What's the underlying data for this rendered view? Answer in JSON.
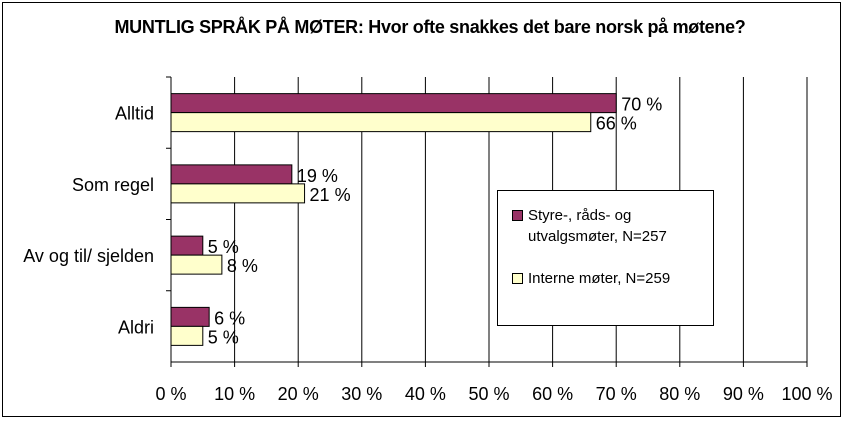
{
  "chart_data": {
    "type": "bar",
    "orientation": "horizontal",
    "title": "MUNTLIG SPRÅK PÅ MØTER: Hvor ofte snakkes det bare norsk på møtene?",
    "categories": [
      "Alltid",
      "Som regel",
      "Av og til/ sjelden",
      "Aldri"
    ],
    "series": [
      {
        "name": "Styre-, råds- og utvalgsmøter, N=257",
        "color": "#993366",
        "values": [
          70,
          19,
          5,
          6
        ],
        "labels": [
          "70 %",
          "19 %",
          "5 %",
          "6 %"
        ]
      },
      {
        "name": "Interne møter, N=259",
        "color": "#FFFFCC",
        "values": [
          66,
          21,
          8,
          5
        ],
        "labels": [
          "66 %",
          "21 %",
          "8 %",
          "5 %"
        ]
      }
    ],
    "xlim": [
      0,
      100
    ],
    "x_ticks": [
      "0 %",
      "10 %",
      "20 %",
      "30 %",
      "40 %",
      "50 %",
      "60 %",
      "70 %",
      "80 %",
      "90 %",
      "100 %"
    ],
    "grid": true,
    "legend_position": "right"
  }
}
